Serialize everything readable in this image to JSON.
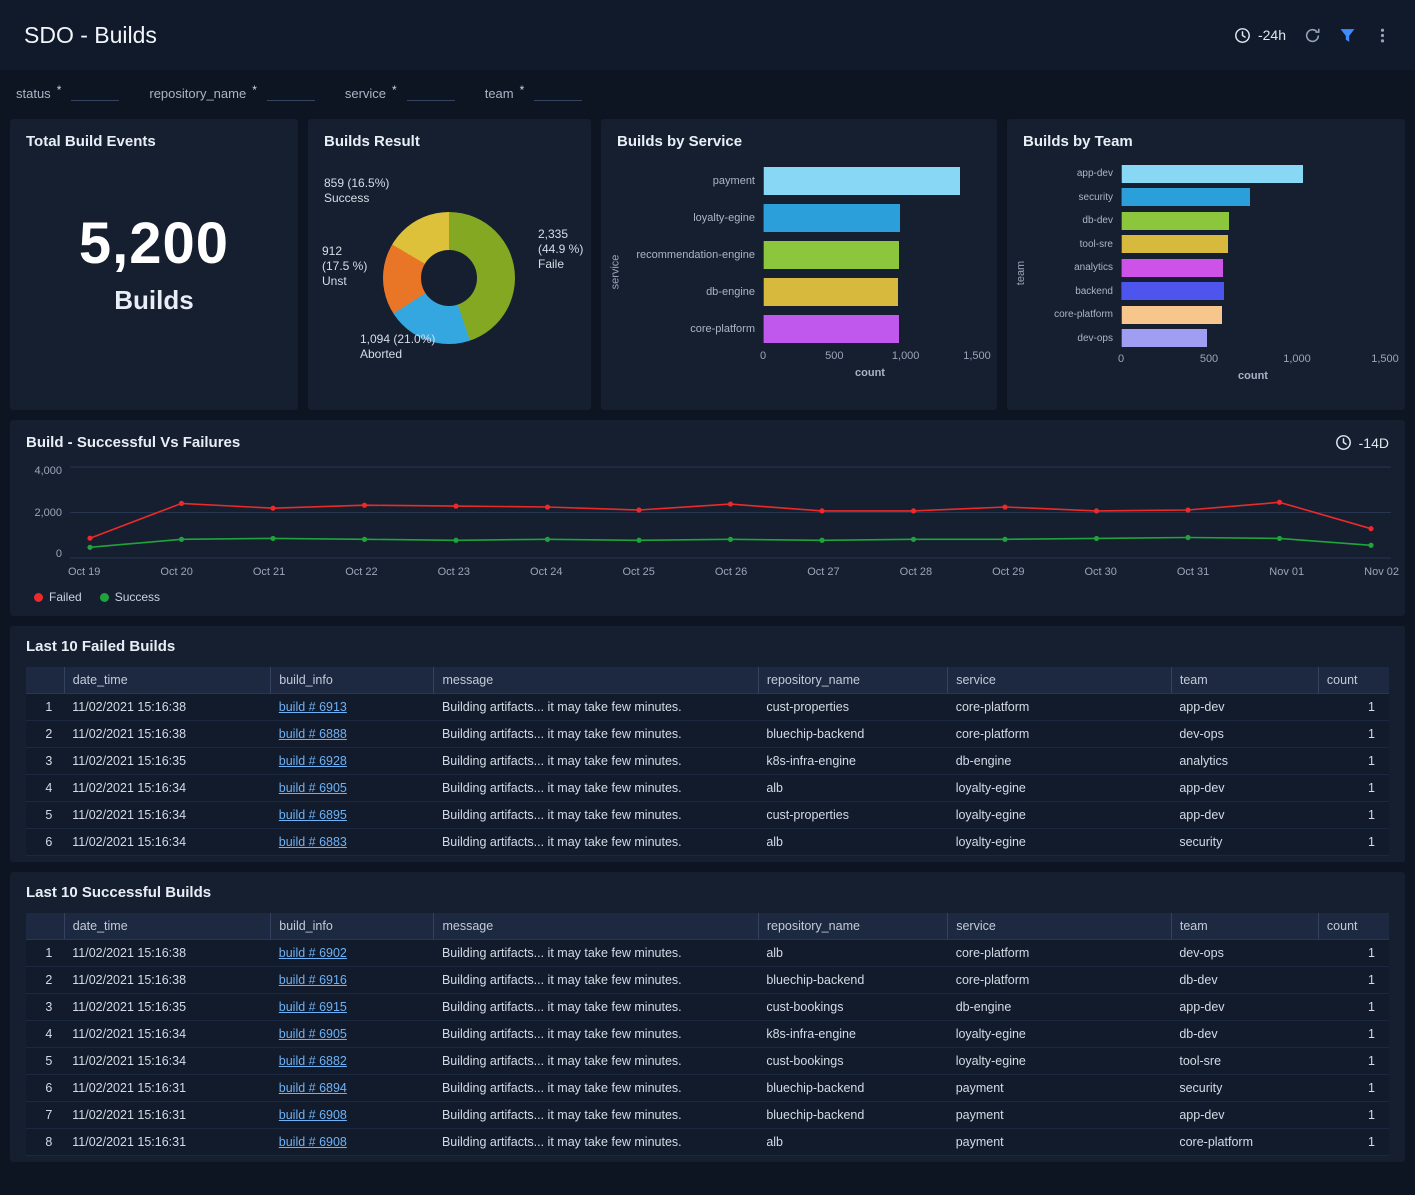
{
  "header": {
    "title": "SDO - Builds",
    "time_range": "-24h"
  },
  "filters": [
    {
      "label": "status",
      "required": "*"
    },
    {
      "label": "repository_name",
      "required": "*"
    },
    {
      "label": "service",
      "required": "*"
    },
    {
      "label": "team",
      "required": "*"
    }
  ],
  "panels": {
    "total": {
      "title": "Total Build Events",
      "value": "5,200",
      "unit": "Builds"
    },
    "trend": {
      "time_range": "-14D"
    }
  },
  "chart_data": [
    {
      "type": "pie",
      "title": "Builds Result",
      "slices": [
        {
          "name": "Faile",
          "value": 2335,
          "value_label": "2,335 (44.9 %)",
          "color": "#84a821"
        },
        {
          "name": "Aborted",
          "value": 1094,
          "value_label": "1,094 (21.0%)",
          "color": "#35a7e0"
        },
        {
          "name": "Unst",
          "value": 912,
          "value_label": "912 (17.5 %)",
          "color": "#e97626"
        },
        {
          "name": "Success",
          "value": 859,
          "value_label": "859 (16.5%)",
          "color": "#dec13a"
        }
      ]
    },
    {
      "type": "bar",
      "title": "Builds by Service",
      "orientation": "horizontal",
      "xlabel": "count",
      "ylabel": "service",
      "xlim": [
        0,
        1500
      ],
      "tick_values": [
        0,
        500,
        1000,
        1500
      ],
      "tick_labels": [
        "0",
        "500",
        "1,000",
        "1,500"
      ],
      "categories": [
        "payment",
        "loyalty-egine",
        "recommendation-engine",
        "db-engine",
        "core-platform"
      ],
      "values": [
        1380,
        960,
        950,
        945,
        950
      ],
      "colors": [
        "#87d7f5",
        "#2b9fd9",
        "#8cc63c",
        "#d7ba3d",
        "#c158ee"
      ]
    },
    {
      "type": "bar",
      "title": "Builds by Team",
      "orientation": "horizontal",
      "xlabel": "count",
      "ylabel": "team",
      "xlim": [
        0,
        1500
      ],
      "tick_values": [
        0,
        500,
        1000,
        1500
      ],
      "tick_labels": [
        "0",
        "500",
        "1,000",
        "1,500"
      ],
      "categories": [
        "app-dev",
        "security",
        "db-dev",
        "tool-sre",
        "analytics",
        "backend",
        "core-platform",
        "dev-ops"
      ],
      "values": [
        1035,
        730,
        610,
        605,
        575,
        580,
        570,
        485
      ],
      "colors": [
        "#87d7f5",
        "#2b9fd9",
        "#8cc63c",
        "#d7ba3d",
        "#cd53e8",
        "#4d55ee",
        "#f6c68c",
        "#a09ef2"
      ]
    },
    {
      "type": "line",
      "title": "Build - Successful Vs Failures",
      "ylim": [
        0,
        4000
      ],
      "ytick_values": [
        4000,
        2000,
        0
      ],
      "ytick_labels": [
        "4,000",
        "2,000",
        "0"
      ],
      "x": [
        "Oct 19",
        "Oct 20",
        "Oct 21",
        "Oct 22",
        "Oct 23",
        "Oct 24",
        "Oct 25",
        "Oct 26",
        "Oct 27",
        "Oct 28",
        "Oct 29",
        "Oct 30",
        "Oct 31",
        "Nov 01",
        "Nov 02"
      ],
      "series": [
        {
          "name": "Failed",
          "color": "#eb2a2a",
          "values": [
            870,
            2400,
            2190,
            2320,
            2280,
            2240,
            2110,
            2370,
            2070,
            2070,
            2240,
            2070,
            2110,
            2450,
            1290
          ]
        },
        {
          "name": "Success",
          "color": "#1fa43c",
          "values": [
            470,
            820,
            860,
            820,
            780,
            820,
            780,
            820,
            780,
            820,
            820,
            860,
            900,
            860,
            560
          ]
        }
      ]
    }
  ],
  "tables": {
    "failed": {
      "title": "Last 10 Failed Builds",
      "columns": [
        "date_time",
        "build_info",
        "message",
        "repository_name",
        "service",
        "team",
        "count"
      ],
      "rows": [
        [
          "11/02/2021 15:16:38",
          "build # 6913",
          "Building artifacts... it may take few minutes.",
          "cust-properties",
          "core-platform",
          "app-dev",
          "1"
        ],
        [
          "11/02/2021 15:16:38",
          "build # 6888",
          "Building artifacts... it may take few minutes.",
          "bluechip-backend",
          "core-platform",
          "dev-ops",
          "1"
        ],
        [
          "11/02/2021 15:16:35",
          "build # 6928",
          "Building artifacts... it may take few minutes.",
          "k8s-infra-engine",
          "db-engine",
          "analytics",
          "1"
        ],
        [
          "11/02/2021 15:16:34",
          "build # 6905",
          "Building artifacts... it may take few minutes.",
          "alb",
          "loyalty-egine",
          "app-dev",
          "1"
        ],
        [
          "11/02/2021 15:16:34",
          "build # 6895",
          "Building artifacts... it may take few minutes.",
          "cust-properties",
          "loyalty-egine",
          "app-dev",
          "1"
        ],
        [
          "11/02/2021 15:16:34",
          "build # 6883",
          "Building artifacts... it may take few minutes.",
          "alb",
          "loyalty-egine",
          "security",
          "1"
        ]
      ]
    },
    "success": {
      "title": "Last 10 Successful Builds",
      "columns": [
        "date_time",
        "build_info",
        "message",
        "repository_name",
        "service",
        "team",
        "count"
      ],
      "rows": [
        [
          "11/02/2021 15:16:38",
          "build # 6902",
          "Building artifacts... it may take few minutes.",
          "alb",
          "core-platform",
          "dev-ops",
          "1"
        ],
        [
          "11/02/2021 15:16:38",
          "build # 6916",
          "Building artifacts... it may take few minutes.",
          "bluechip-backend",
          "core-platform",
          "db-dev",
          "1"
        ],
        [
          "11/02/2021 15:16:35",
          "build # 6915",
          "Building artifacts... it may take few minutes.",
          "cust-bookings",
          "db-engine",
          "app-dev",
          "1"
        ],
        [
          "11/02/2021 15:16:34",
          "build # 6905",
          "Building artifacts... it may take few minutes.",
          "k8s-infra-engine",
          "loyalty-egine",
          "db-dev",
          "1"
        ],
        [
          "11/02/2021 15:16:34",
          "build # 6882",
          "Building artifacts... it may take few minutes.",
          "cust-bookings",
          "loyalty-egine",
          "tool-sre",
          "1"
        ],
        [
          "11/02/2021 15:16:31",
          "build # 6894",
          "Building artifacts... it may take few minutes.",
          "bluechip-backend",
          "payment",
          "security",
          "1"
        ],
        [
          "11/02/2021 15:16:31",
          "build # 6908",
          "Building artifacts... it may take few minutes.",
          "bluechip-backend",
          "payment",
          "app-dev",
          "1"
        ],
        [
          "11/02/2021 15:16:31",
          "build # 6908",
          "Building artifacts... it may take few minutes.",
          "alb",
          "payment",
          "core-platform",
          "1"
        ]
      ]
    }
  }
}
